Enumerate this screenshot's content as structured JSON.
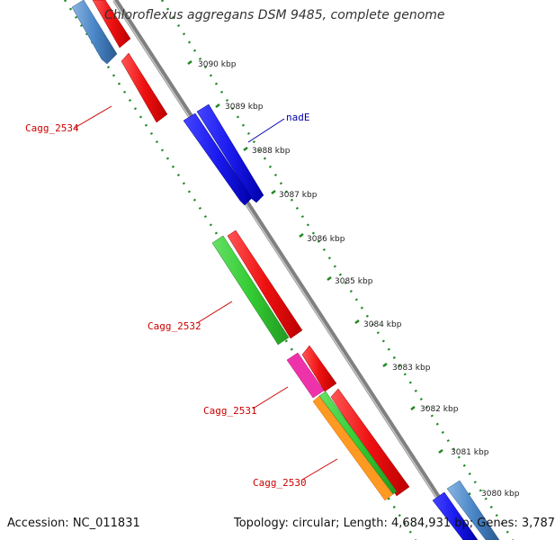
{
  "header": {
    "title": "Chloroflexus aggregans DSM 9485, complete genome"
  },
  "footer": {
    "accession": "Accession: NC_011831",
    "topology": "Topology: circular; Length: 4,684,931 bp; Genes: 3,787"
  },
  "tick_labels": [
    "3090 kbp",
    "3089 kbp",
    "3088 kbp",
    "3087 kbp",
    "3086 kbp",
    "3085 kbp",
    "3084 kbp",
    "3083 kbp",
    "3082 kbp",
    "3081 kbp",
    "3080 kbp"
  ],
  "gene_labels": [
    "Cagg_2534",
    "nadE",
    "Cagg_2532",
    "Cagg_2531",
    "Cagg_2530"
  ],
  "colors": {
    "backbone": "#888888",
    "red_cds": "#ee1111",
    "blue_cds": "#1a1aee",
    "green_cds": "#33cc33",
    "pink_cds": "#ee33aa",
    "orange_cds": "#ff9922",
    "steel_cds": "#4a86c8",
    "dotted_ring": "#228822"
  }
}
